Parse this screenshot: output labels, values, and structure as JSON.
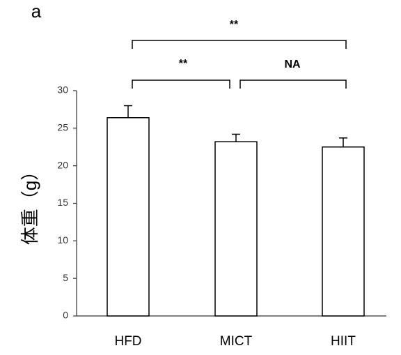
{
  "chart_data": {
    "type": "bar",
    "panel_label": "a",
    "y_label": "体重（g）",
    "categories": [
      "HFD",
      "MICT",
      "HIIT"
    ],
    "values": [
      26.4,
      23.2,
      22.5
    ],
    "errors": [
      1.6,
      1.0,
      1.2
    ],
    "color": "#ffffff",
    "ylim": [
      0,
      30
    ],
    "yticks": [
      0,
      5,
      10,
      15,
      20,
      25,
      30
    ],
    "annotations": [
      "**",
      "**",
      "NA"
    ]
  }
}
